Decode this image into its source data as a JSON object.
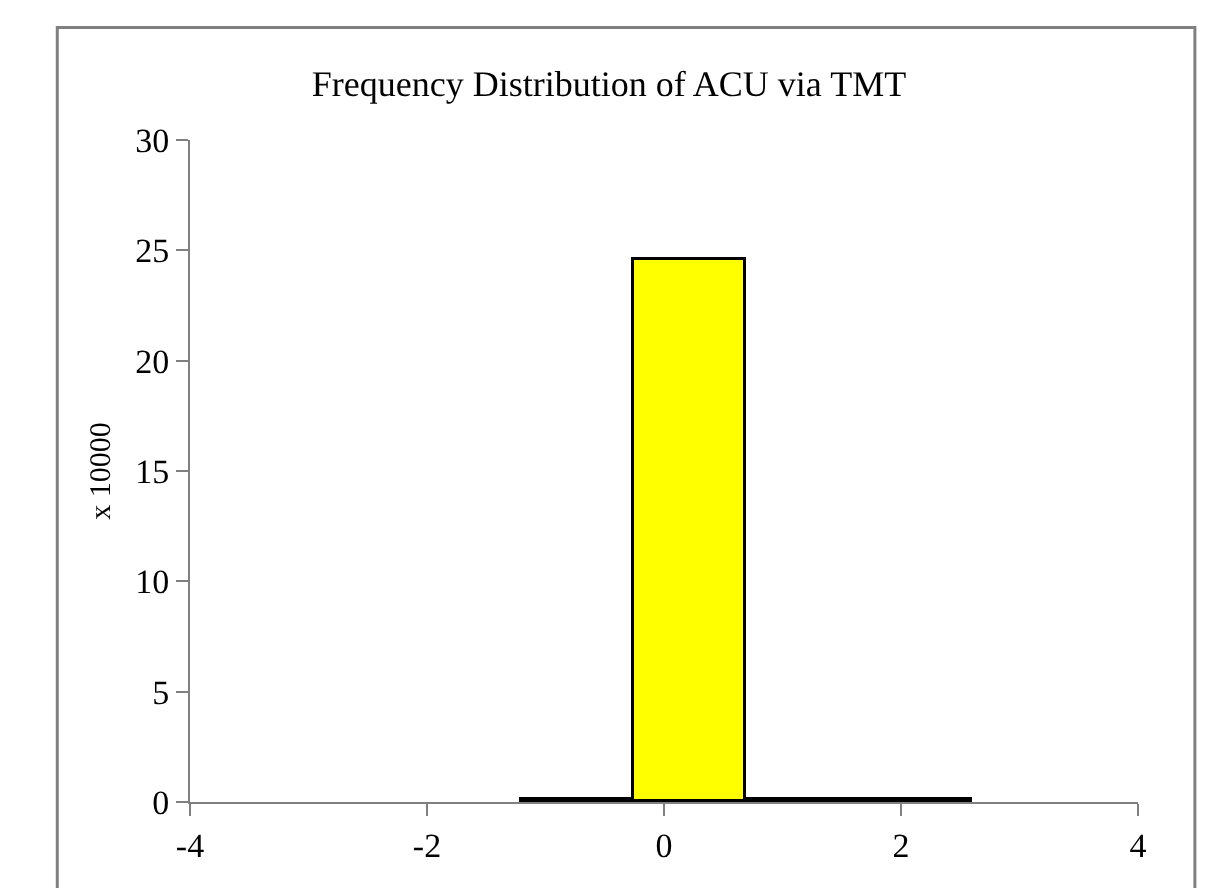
{
  "chart_data": {
    "type": "histogram",
    "title": "Frequency Distribution of ACU via TMT",
    "ylabel": "x 10000",
    "bins": [
      -1.2,
      -0.25,
      0.7,
      1.65,
      2.6
    ],
    "values": [
      0.1,
      24.6,
      0.1,
      0.1
    ],
    "color": "#ffff00",
    "xlim": [
      -4,
      4
    ],
    "xticks": [
      -4,
      -2,
      0,
      2,
      4
    ],
    "ylim": [
      0,
      30
    ],
    "yticks": [
      0,
      5,
      10,
      15,
      20,
      25,
      30
    ]
  }
}
